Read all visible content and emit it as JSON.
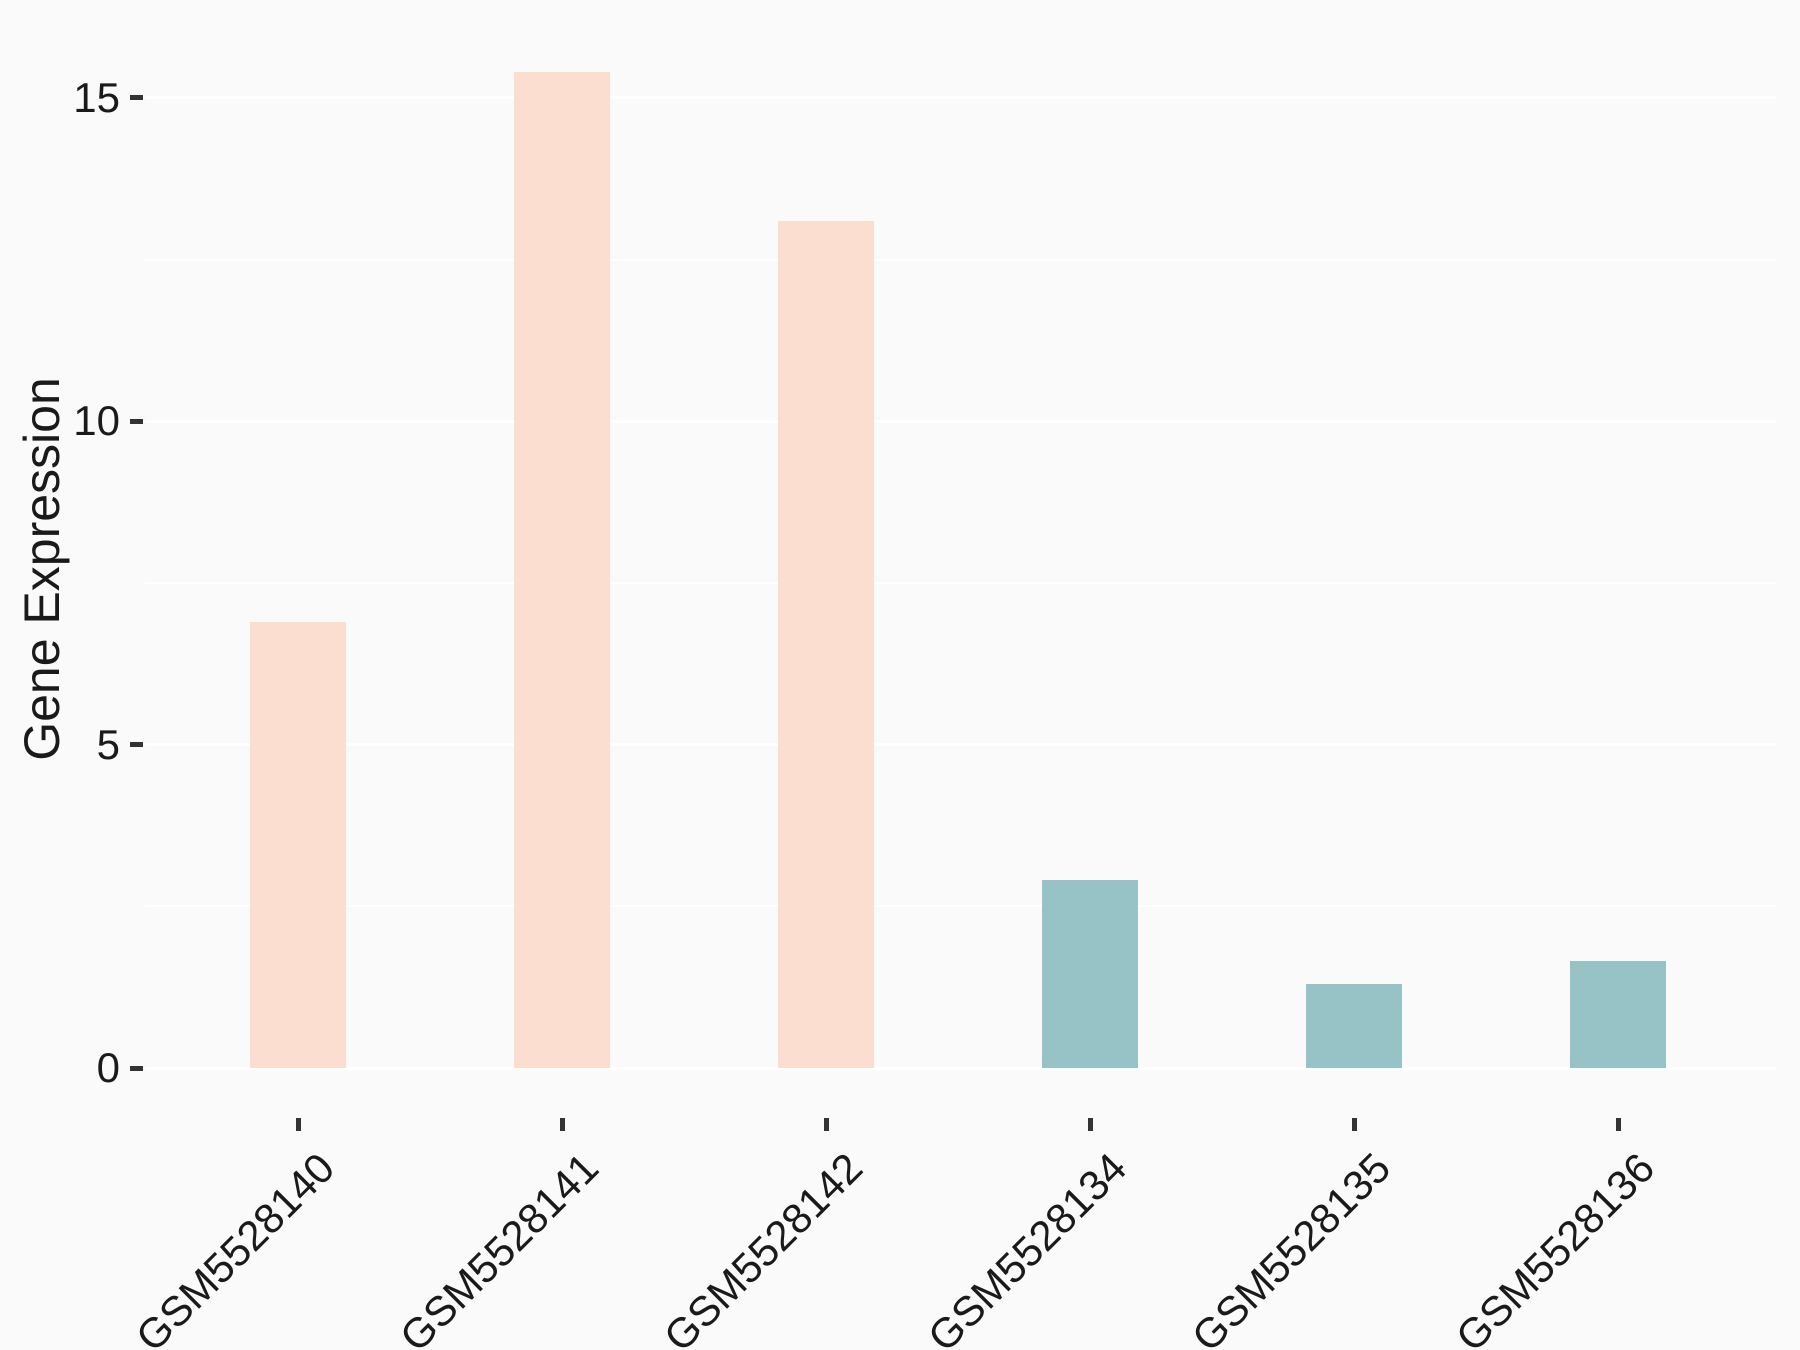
{
  "figure": {
    "background_color": "#FAFAFA",
    "grid_color": "#FFFFFF",
    "tick_color": "#333333",
    "text_color": "#1A1A1A"
  },
  "chart_data": {
    "type": "bar",
    "title": "",
    "xlabel": "",
    "ylabel": "Gene Expression",
    "categories": [
      "GSM5528140",
      "GSM5528141",
      "GSM5528142",
      "GSM5528134",
      "GSM5528135",
      "GSM5528136"
    ],
    "values": [
      6.9,
      15.4,
      13.1,
      2.9,
      1.3,
      1.65
    ],
    "groups": [
      "group1",
      "group1",
      "group1",
      "group2",
      "group2",
      "group2"
    ],
    "group_colors": {
      "group1": "#FCDED1",
      "group2": "#98C3C6"
    },
    "yticks": [
      0,
      5,
      10,
      15
    ],
    "yticks_minor": [
      2.5,
      7.5,
      12.5
    ],
    "ylim": [
      0,
      16.2
    ],
    "grid": "on",
    "legend": "none",
    "x_label_rotation_deg": 45
  }
}
